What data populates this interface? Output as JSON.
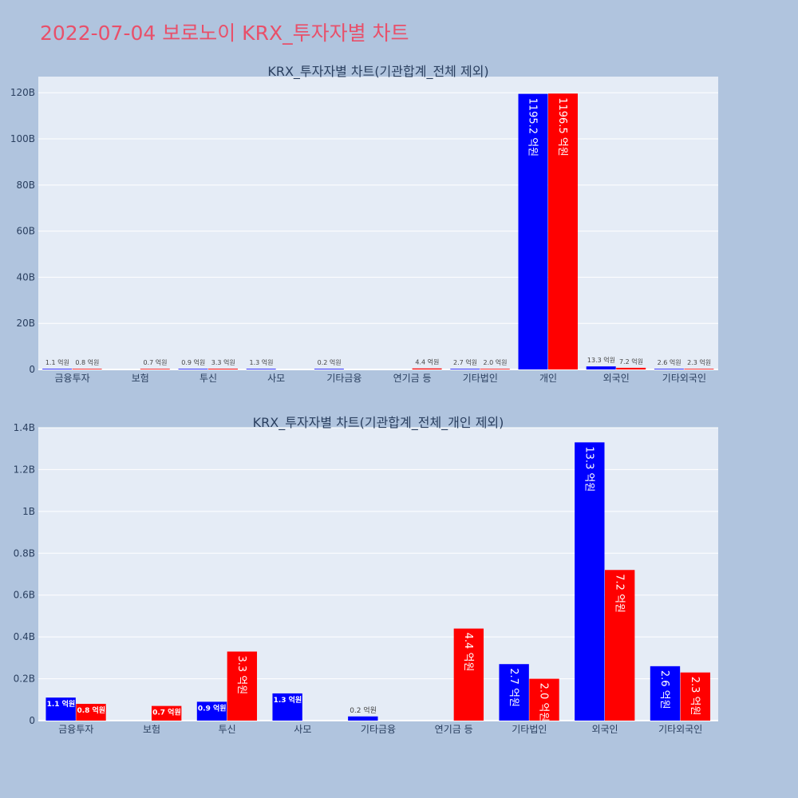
{
  "title": "2022-07-04 보로노이 KRX_투자자별 차트",
  "colors": {
    "series_a": "#0000ff",
    "series_b": "#ff0000",
    "plot_bg": "#e5ecf6",
    "page_bg": "#b0c4de",
    "title": "#e8506a"
  },
  "chart_data": [
    {
      "type": "bar",
      "title": "KRX_투자자별 차트(기관합계_전체 제외)",
      "categories": [
        "금융투자",
        "보험",
        "투신",
        "사모",
        "기타금융",
        "연기금 등",
        "기타법인",
        "개인",
        "외국인",
        "기타외국인"
      ],
      "ylim": [
        0,
        127000000000
      ],
      "yticks": [
        0,
        20000000000,
        40000000000,
        60000000000,
        80000000000,
        100000000000,
        120000000000
      ],
      "ytick_labels": [
        "0",
        "20B",
        "40B",
        "60B",
        "80B",
        "100B",
        "120B"
      ],
      "grid": true,
      "series": [
        {
          "color": "#0000ff",
          "values": [
            110000000,
            null,
            90000000,
            130000000,
            20000000,
            null,
            270000000,
            119520000000,
            1330000000,
            260000000
          ],
          "labels": [
            "1.1 억원",
            "",
            "0.9 억원",
            "1.3 억원",
            "0.2 억원",
            "",
            "2.7 억원",
            "1195.2 억원",
            "13.3 억원",
            "2.6 억원"
          ]
        },
        {
          "color": "#ff0000",
          "values": [
            80000000,
            70000000,
            330000000,
            null,
            null,
            440000000,
            200000000,
            119650000000,
            720000000,
            230000000
          ],
          "labels": [
            "0.8 억원",
            "0.7 억원",
            "3.3 억원",
            "",
            "",
            "4.4 억원",
            "2.0 억원",
            "1196.5 억원",
            "7.2 억원",
            "2.3 억원"
          ]
        }
      ]
    },
    {
      "type": "bar",
      "title": "KRX_투자자별 차트(기관합계_전체_개인 제외)",
      "categories": [
        "금융투자",
        "보험",
        "투신",
        "사모",
        "기타금융",
        "연기금 등",
        "기타법인",
        "외국인",
        "기타외국인"
      ],
      "ylim": [
        0,
        1400000000
      ],
      "yticks": [
        0,
        200000000,
        400000000,
        600000000,
        800000000,
        1000000000,
        1200000000,
        1400000000
      ],
      "ytick_labels": [
        "0",
        "0.2B",
        "0.4B",
        "0.6B",
        "0.8B",
        "1B",
        "1.2B",
        "1.4B"
      ],
      "grid": true,
      "series": [
        {
          "color": "#0000ff",
          "values": [
            110000000,
            null,
            90000000,
            130000000,
            20000000,
            null,
            270000000,
            1330000000,
            260000000
          ],
          "labels": [
            "1.1 억원",
            "",
            "0.9 억원",
            "1.3 억원",
            "0.2 억원",
            "",
            "2.7 억원",
            "13.3 억원",
            "2.6 억원"
          ]
        },
        {
          "color": "#ff0000",
          "values": [
            80000000,
            70000000,
            330000000,
            null,
            null,
            440000000,
            200000000,
            720000000,
            230000000
          ],
          "labels": [
            "0.8 억원",
            "0.7 억원",
            "3.3 억원",
            "",
            "",
            "4.4 억원",
            "2.0 억원",
            "7.2 억원",
            "2.3 억원"
          ]
        }
      ]
    }
  ]
}
